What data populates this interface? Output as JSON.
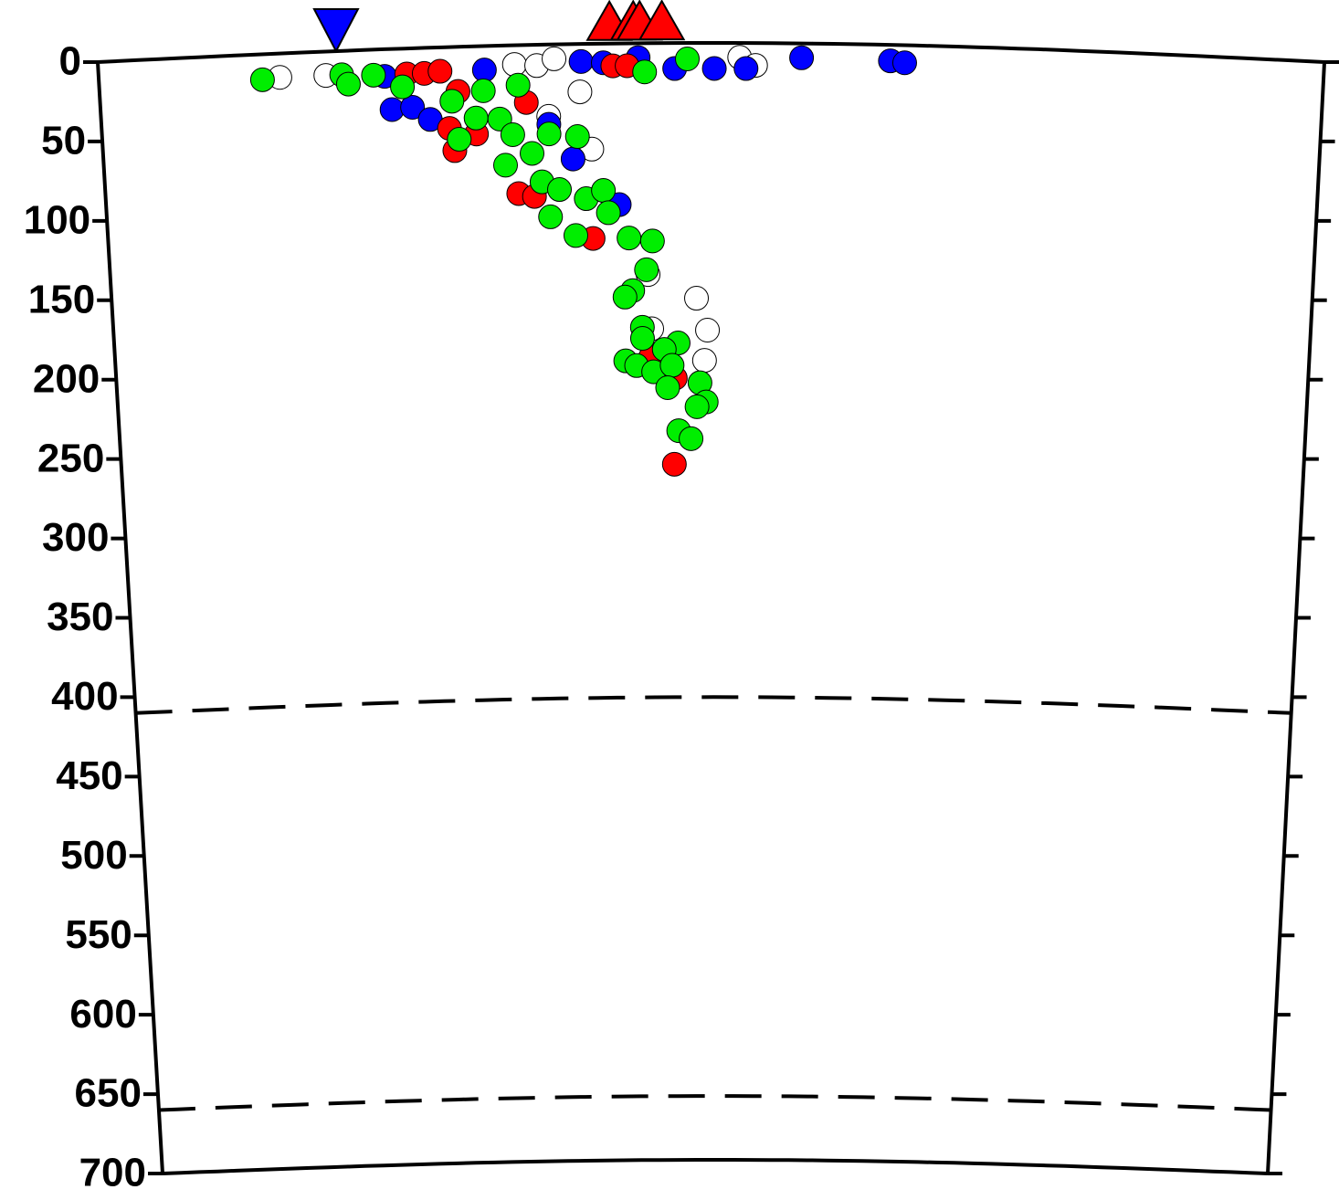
{
  "chart_data": {
    "type": "scatter",
    "xlim": [
      0,
      772
    ],
    "ylim": [
      0,
      700
    ],
    "y_inverted": true,
    "yticks": [
      0,
      50,
      100,
      150,
      200,
      250,
      300,
      350,
      400,
      450,
      500,
      550,
      600,
      650,
      700
    ],
    "reference_lines": [
      410,
      660
    ],
    "series": [
      {
        "color": "#ffffff",
        "x": [
          114,
          143,
          262,
          276,
          287,
          303,
          310,
          283,
          404,
          414,
          376,
          383,
          381,
          345,
          347
        ],
        "values": [
          15,
          15,
          12,
          13,
          9,
          30,
          66,
          45,
          9,
          14,
          160,
          180,
          199,
          145,
          179
        ]
      },
      {
        "color": "#0000ff",
        "x": [
          180,
          184,
          197,
          208,
          243,
          283,
          298,
          327,
          304,
          318,
          340,
          363,
          388,
          408,
          443,
          499,
          508
        ],
        "values": [
          17,
          38,
          37,
          45,
          15,
          50,
          72,
          101,
          11,
          12,
          9,
          16,
          16,
          16,
          9,
          10,
          11
        ]
      },
      {
        "color": "#ff0000",
        "x": [
          194,
          205,
          215,
          226,
          220,
          223,
          237,
          269,
          263,
          273,
          310,
          324,
          333,
          346,
          362,
          361
        ],
        "values": [
          16,
          16,
          15,
          28,
          51,
          65,
          55,
          36,
          93,
          95,
          122,
          14,
          14,
          197,
          210,
          264
        ]
      },
      {
        "color": "#00ee00",
        "x": [
          103,
          153,
          157,
          173,
          191,
          222,
          242,
          264,
          237,
          252,
          226,
          260,
          272,
          283,
          301,
          255,
          278,
          289,
          306,
          317,
          320,
          283,
          299,
          333,
          348,
          344,
          335,
          330,
          341,
          341,
          364,
          355,
          330,
          337,
          348,
          360,
          357,
          378,
          382,
          376,
          364,
          372,
          344,
          371
        ],
        "values": [
          16,
          15,
          21,
          16,
          24,
          34,
          28,
          25,
          45,
          46,
          58,
          56,
          68,
          56,
          58,
          75,
          86,
          91,
          97,
          92,
          106,
          108,
          120,
          122,
          124,
          142,
          155,
          159,
          178,
          185,
          188,
          192,
          199,
          202,
          206,
          202,
          216,
          213,
          225,
          228,
          243,
          248,
          18,
          10
        ]
      }
    ],
    "markers": [
      {
        "shape": "triangle-down",
        "color": "#0000ff",
        "x": [
          150
        ]
      },
      {
        "shape": "triangle-up",
        "color": "#ff0000",
        "x": [
          322,
          337,
          341,
          355
        ]
      }
    ]
  }
}
